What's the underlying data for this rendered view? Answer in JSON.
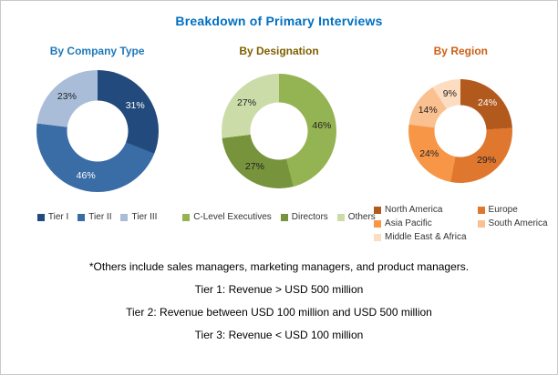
{
  "title": "Breakdown of Primary Interviews",
  "title_color": "#0070C0",
  "footnote": "*Others include sales managers, marketing managers, and product managers.",
  "tier_notes": [
    "Tier 1: Revenue > USD 500 million",
    "Tier 2: Revenue between USD 100 million and USD 500 million",
    "Tier 3: Revenue < USD 100 million"
  ],
  "chart_data": [
    {
      "type": "pie",
      "subtype": "donut",
      "title": "By Company Type",
      "title_color": "#1F78B8",
      "categories": [
        "Tier I",
        "Tier II",
        "Tier III"
      ],
      "values": [
        31,
        46,
        23
      ],
      "colors": [
        "#234A7C",
        "#3A6CA6",
        "#A9BDD8"
      ],
      "value_label_colors": [
        "#FFFFFF",
        "#FFFFFF",
        "#1F1F1F"
      ],
      "size": 134,
      "hole_ratio": 0.5,
      "legend_layout": "row",
      "legend_position": "bottom",
      "start_angle_deg": 0,
      "direction": "clockwise"
    },
    {
      "type": "pie",
      "subtype": "donut",
      "title": "By Designation",
      "title_color": "#7F6000",
      "categories": [
        "C-Level Executives",
        "Directors",
        "Others"
      ],
      "values": [
        46,
        27,
        27
      ],
      "colors": [
        "#94B352",
        "#77933C",
        "#CBDCA8"
      ],
      "value_label_colors": [
        "#1F1F1F",
        "#1F1F1F",
        "#1F1F1F"
      ],
      "size": 126,
      "hole_ratio": 0.5,
      "legend_layout": "row",
      "legend_position": "bottom",
      "start_angle_deg": 0,
      "direction": "clockwise"
    },
    {
      "type": "pie",
      "subtype": "donut",
      "title": "By Region",
      "title_color": "#CB6015",
      "categories": [
        "North America",
        "Europe",
        "Asia Pacific",
        "South America",
        "Middle East & Africa"
      ],
      "values": [
        24,
        29,
        24,
        14,
        9
      ],
      "colors": [
        "#B25A1E",
        "#E0772F",
        "#F79646",
        "#FAC090",
        "#FCDDC2"
      ],
      "value_label_colors": [
        "#FFFFFF",
        "#1F1F1F",
        "#1F1F1F",
        "#1F1F1F",
        "#1F1F1F"
      ],
      "size": 114,
      "hole_ratio": 0.5,
      "legend_layout": "grid",
      "legend_position": "bottom",
      "start_angle_deg": 0,
      "direction": "clockwise"
    }
  ]
}
